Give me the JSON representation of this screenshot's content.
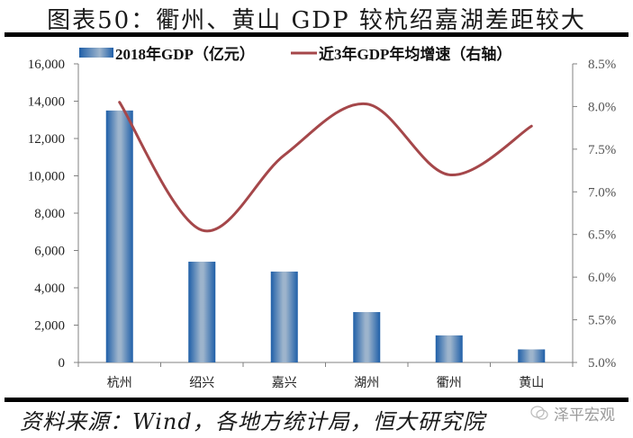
{
  "title": "图表50：衢州、黄山 GDP 较杭绍嘉湖差距较大",
  "source": "资料来源：Wind，各地方统计局，恒大研究院",
  "watermark": "泽平宏观",
  "legend": {
    "bar": "2018年GDP（亿元）",
    "line": "近3年GDP年均增速（右轴）"
  },
  "colors": {
    "bar_edge": "#1f5fa8",
    "bar_center": "#9db4cc",
    "line": "#a5474a",
    "axis": "#808080"
  },
  "chart_data": {
    "type": "bar+line",
    "title": "图表50：衢州、黄山 GDP 较杭绍嘉湖差距较大",
    "categories": [
      "杭州",
      "绍兴",
      "嘉兴",
      "湖州",
      "衢州",
      "黄山"
    ],
    "series": [
      {
        "name": "2018年GDP（亿元）",
        "type": "bar",
        "axis": "left",
        "values": [
          13500,
          5400,
          4870,
          2700,
          1450,
          700
        ]
      },
      {
        "name": "近3年GDP年均增速（右轴）",
        "type": "line",
        "axis": "right",
        "smooth": true,
        "values": [
          8.05,
          6.55,
          7.43,
          8.03,
          7.2,
          7.77
        ]
      }
    ],
    "left_axis": {
      "ylim": [
        0,
        16000
      ],
      "ticks": [
        "0",
        "2,000",
        "4,000",
        "6,000",
        "8,000",
        "10,000",
        "12,000",
        "14,000",
        "16,000"
      ]
    },
    "right_axis": {
      "ylim": [
        5.0,
        8.5
      ],
      "ticks": [
        "5.0%",
        "5.5%",
        "6.0%",
        "6.5%",
        "7.0%",
        "7.5%",
        "8.0%",
        "8.5%"
      ]
    },
    "xlabel": "",
    "ylabel": "",
    "grid": false,
    "legend_position": "top"
  }
}
